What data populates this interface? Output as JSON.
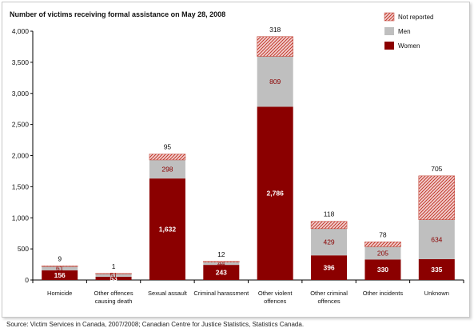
{
  "chart_data": {
    "type": "bar",
    "stacked": true,
    "title": "Number of victims receiving formal assistance on May 28, 2008",
    "xlabel": "",
    "ylabel": "",
    "ylim": [
      0,
      4000
    ],
    "yticks": [
      0,
      500,
      1000,
      1500,
      2000,
      2500,
      3000,
      3500,
      4000
    ],
    "ytick_labels": [
      "0",
      "500",
      "1,000",
      "1,500",
      "2,000",
      "2,500",
      "3,000",
      "3,500",
      "4,000"
    ],
    "grid": false,
    "legend_position": "top-right",
    "categories": [
      "Homicide",
      "Other offences causing death",
      "Sexual assault",
      "Criminal harassment",
      "Other violent offences",
      "Other criminal offences",
      "Other incidents",
      "Unknown"
    ],
    "category_lines": [
      [
        "Homicide"
      ],
      [
        "Other offences",
        "causing death"
      ],
      [
        "Sexual assault"
      ],
      [
        "Criminal harassment"
      ],
      [
        "Other violent",
        "offences"
      ],
      [
        "Other criminal",
        "offences"
      ],
      [
        "Other incidents"
      ],
      [
        "Unknown"
      ]
    ],
    "series": [
      {
        "name": "Women",
        "values": [
          156,
          53,
          1632,
          243,
          2786,
          396,
          330,
          335
        ],
        "labels": [
          "156",
          "53",
          "1,632",
          "243",
          "2,786",
          "396",
          "330",
          "335"
        ],
        "color": "#8b0000"
      },
      {
        "name": "Men",
        "values": [
          61,
          51,
          298,
          44,
          809,
          429,
          205,
          634
        ],
        "labels": [
          "61",
          "51",
          "298",
          "44",
          "809",
          "429",
          "205",
          "634"
        ],
        "color": "#bfbfbf"
      },
      {
        "name": "Not reported",
        "values": [
          9,
          1,
          95,
          12,
          318,
          118,
          78,
          705
        ],
        "labels": [
          "9",
          "1",
          "95",
          "12",
          "318",
          "118",
          "78",
          "705"
        ],
        "color": "#c0392b"
      }
    ],
    "legend_order": [
      "Not reported",
      "Men",
      "Women"
    ]
  },
  "source": "Source:  Victim Services in Canada, 2007/2008; Canadian Centre for Justice Statistics, Statistics Canada."
}
